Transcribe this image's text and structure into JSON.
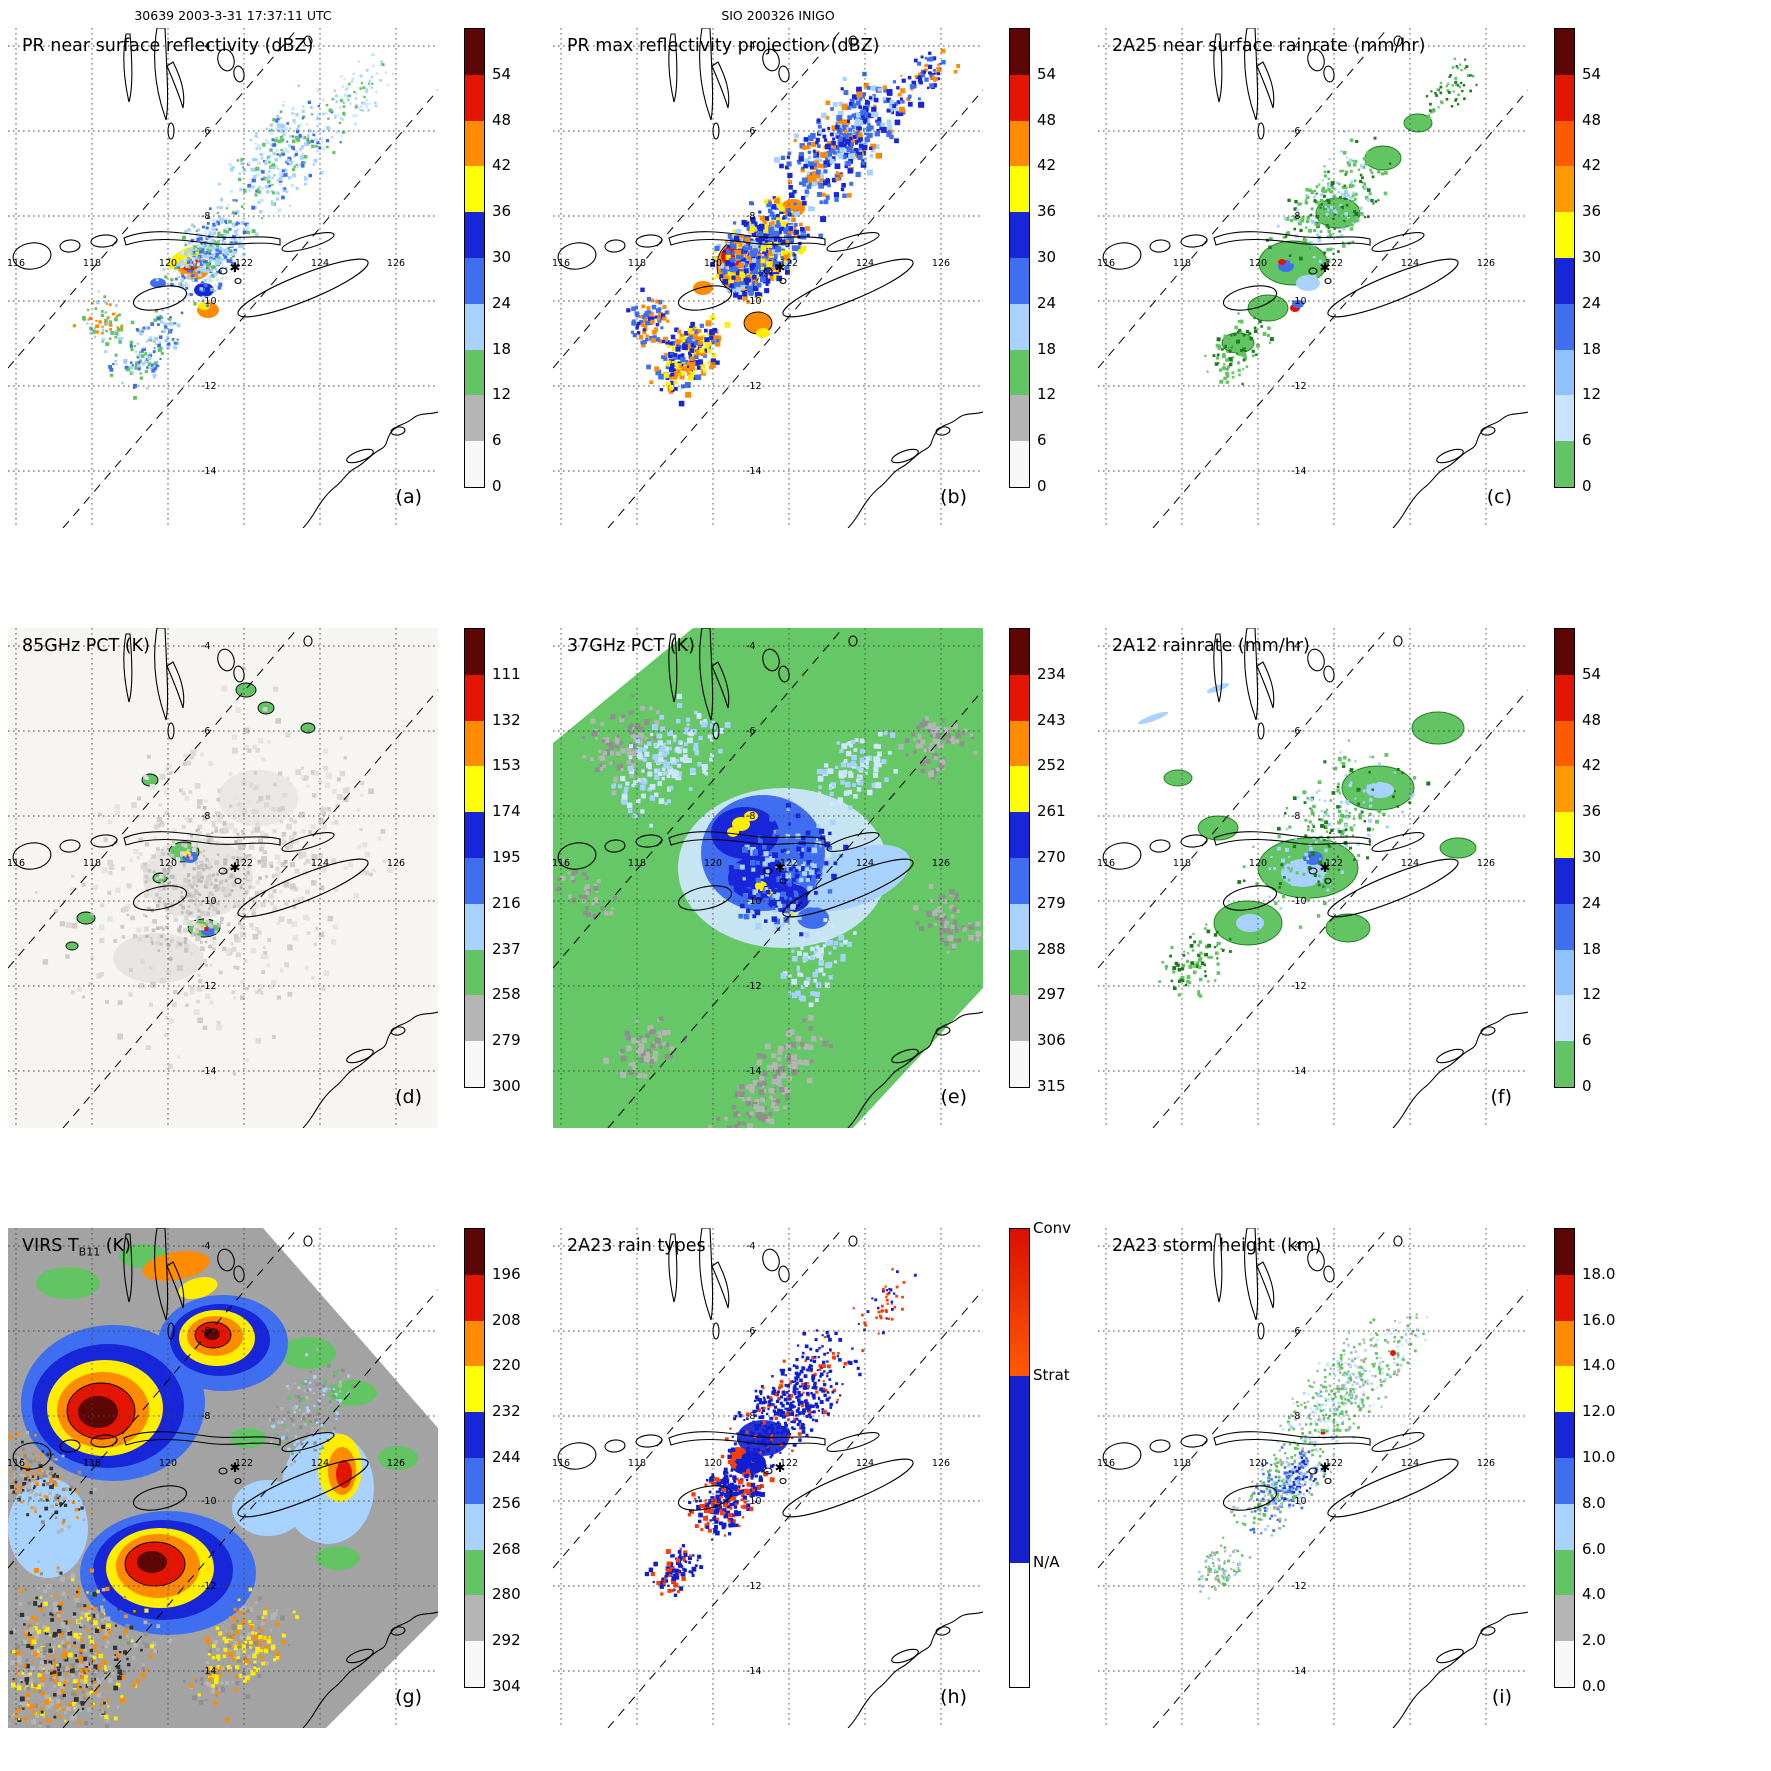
{
  "header": {
    "left": "30639 2003-3-31 17:37:11 UTC",
    "center": "SIO 200326 INIGO"
  },
  "map_annotations": {
    "storm_marker": "✱",
    "lon_labels": [
      "116",
      "118",
      "120",
      "122",
      "124",
      "126"
    ],
    "lat_labels": [
      "-4",
      "-6",
      "-8",
      "-10",
      "-12",
      "-14"
    ]
  },
  "panels": [
    {
      "letter": "(a)",
      "title": "PR near surface reflectivity (dBZ)",
      "colorbar": {
        "type": "continuous",
        "ticks": [
          "54",
          "48",
          "42",
          "36",
          "30",
          "24",
          "18",
          "12",
          "6",
          "0"
        ],
        "colors_top_to_bottom": [
          "#5c0606",
          "#e31400",
          "#ff8c00",
          "#ffff00",
          "#1726d8",
          "#3f6ff0",
          "#a8d2ff",
          "#62c462",
          "#b5b5b5",
          "#f7f7f7"
        ]
      }
    },
    {
      "letter": "(b)",
      "title": "PR max reflectivity projection (dBZ)",
      "colorbar": {
        "type": "continuous",
        "ticks": [
          "54",
          "48",
          "42",
          "36",
          "30",
          "24",
          "18",
          "12",
          "6",
          "0"
        ],
        "colors_top_to_bottom": [
          "#5c0606",
          "#e31400",
          "#ff8c00",
          "#ffff00",
          "#1726d8",
          "#3f6ff0",
          "#a8d2ff",
          "#62c462",
          "#b5b5b5",
          "#f7f7f7"
        ]
      }
    },
    {
      "letter": "(c)",
      "title": "2A25 near surface rainrate (mm/hr)",
      "colorbar": {
        "type": "continuous",
        "ticks": [
          "54",
          "48",
          "42",
          "36",
          "30",
          "24",
          "18",
          "12",
          "6",
          "0"
        ],
        "colors_top_to_bottom": [
          "#5c0606",
          "#e31400",
          "#ff5a00",
          "#ff9900",
          "#ffff00",
          "#1726d8",
          "#3f6ff0",
          "#8fc2ff",
          "#c9e4ff",
          "#62c462"
        ]
      }
    },
    {
      "letter": "(d)",
      "title": "85GHz PCT (K)",
      "colorbar": {
        "type": "continuous",
        "ticks": [
          "111",
          "132",
          "153",
          "174",
          "195",
          "216",
          "237",
          "258",
          "279",
          "300"
        ],
        "colors_top_to_bottom": [
          "#5c0606",
          "#e31400",
          "#ff8c00",
          "#ffff00",
          "#1726d8",
          "#3f6ff0",
          "#a8d2ff",
          "#62c462",
          "#b5b5b5",
          "#f7f7f7"
        ]
      }
    },
    {
      "letter": "(e)",
      "title": "37GHz PCT (K)",
      "colorbar": {
        "type": "continuous",
        "ticks": [
          "234",
          "243",
          "252",
          "261",
          "270",
          "279",
          "288",
          "297",
          "306",
          "315"
        ],
        "colors_top_to_bottom": [
          "#5c0606",
          "#e31400",
          "#ff8c00",
          "#ffff00",
          "#1726d8",
          "#3f6ff0",
          "#a8d2ff",
          "#62c462",
          "#b5b5b5",
          "#f7f7f7"
        ]
      }
    },
    {
      "letter": "(f)",
      "title": "2A12 rainrate (mm/hr)",
      "colorbar": {
        "type": "continuous",
        "ticks": [
          "54",
          "48",
          "42",
          "36",
          "30",
          "24",
          "18",
          "12",
          "6",
          "0"
        ],
        "colors_top_to_bottom": [
          "#5c0606",
          "#e31400",
          "#ff5a00",
          "#ff9900",
          "#ffff00",
          "#1726d8",
          "#3f6ff0",
          "#8fc2ff",
          "#c9e4ff",
          "#62c462"
        ]
      }
    },
    {
      "letter": "(g)",
      "title_prefix": "VIRS T",
      "title_sub": "B11",
      "title_suffix": " (K)",
      "colorbar": {
        "type": "continuous",
        "ticks": [
          "196",
          "208",
          "220",
          "232",
          "244",
          "256",
          "268",
          "280",
          "292",
          "304"
        ],
        "colors_top_to_bottom": [
          "#5c0606",
          "#e31400",
          "#ff8c00",
          "#ffff00",
          "#1726d8",
          "#3f6ff0",
          "#a8d2ff",
          "#62c462",
          "#b5b5b5",
          "#f7f7f7"
        ]
      }
    },
    {
      "letter": "(h)",
      "title": "2A23 rain types",
      "colorbar": {
        "type": "categorical",
        "segments": [
          {
            "label": "Conv",
            "color": "#ff4400",
            "frac": 0.32
          },
          {
            "label": "Strat",
            "color": "#1522cc",
            "frac": 0.41
          },
          {
            "label": "N/A",
            "color": "#ffffff",
            "frac": 0.27
          }
        ]
      }
    },
    {
      "letter": "(i)",
      "title": "2A23 storm height (km)",
      "colorbar": {
        "type": "continuous",
        "ticks": [
          "18.0",
          "16.0",
          "14.0",
          "12.0",
          "10.0",
          "8.0",
          "6.0",
          "4.0",
          "2.0",
          "0.0"
        ],
        "colors_top_to_bottom": [
          "#5c0606",
          "#e31400",
          "#ff8c00",
          "#ffff00",
          "#1726d8",
          "#3f6ff0",
          "#a8d2ff",
          "#62c462",
          "#b5b5b5",
          "#f7f7f7"
        ]
      }
    }
  ]
}
